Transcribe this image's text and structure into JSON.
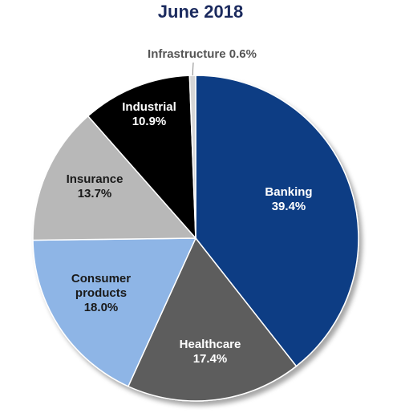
{
  "chart_data": {
    "type": "pie",
    "title": "June 2018",
    "slices": [
      {
        "label_lines": [
          "Banking"
        ],
        "value": 39.4,
        "value_label": "39.4%",
        "color": "#0c3e84",
        "text_color": "#ffffff"
      },
      {
        "label_lines": [
          "Healthcare"
        ],
        "value": 17.4,
        "value_label": "17.4%",
        "color": "#5d5d5d",
        "text_color": "#ffffff"
      },
      {
        "label_lines": [
          "Consumer",
          "products"
        ],
        "value": 18.0,
        "value_label": "18.0%",
        "color": "#8eb5e6",
        "text_color": "#1a1a1a"
      },
      {
        "label_lines": [
          "Insurance"
        ],
        "value": 13.7,
        "value_label": "13.7%",
        "color": "#b8b8b8",
        "text_color": "#1a1a1a"
      },
      {
        "label_lines": [
          "Industrial"
        ],
        "value": 10.9,
        "value_label": "10.9%",
        "color": "#000000",
        "text_color": "#ffffff"
      },
      {
        "label_lines": [
          "Infrastructure 0.6%"
        ],
        "value": 0.6,
        "value_label": "",
        "color": "#d6d6d6",
        "text_color": "#555555",
        "outside": true
      }
    ]
  }
}
